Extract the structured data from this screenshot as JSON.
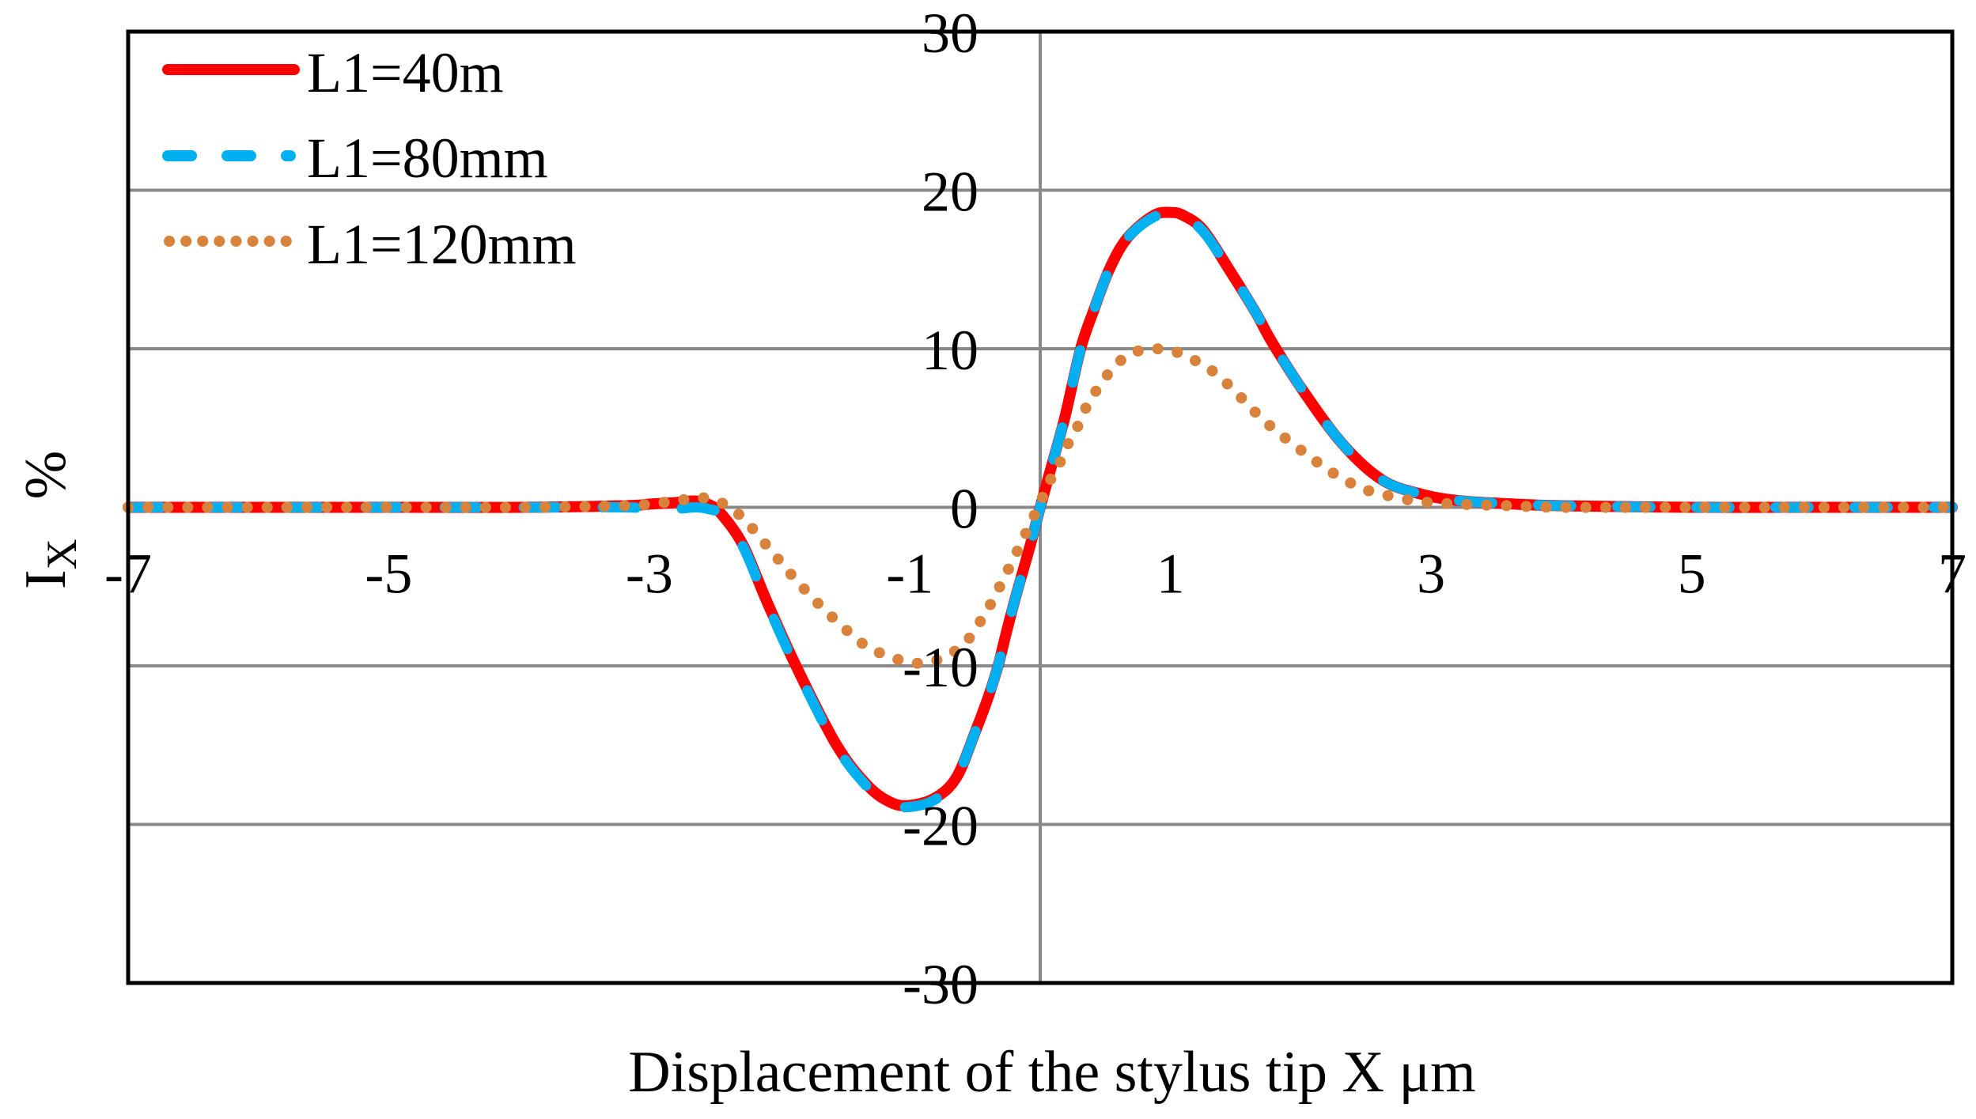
{
  "chart_data": {
    "type": "line",
    "title": "",
    "xlabel": "Displacement of the stylus tip X μm",
    "ylabel": {
      "main": "I",
      "subscript": "X",
      "unit": "%"
    },
    "xlim": [
      -7,
      7
    ],
    "ylim": [
      -30,
      30
    ],
    "x_ticks": [
      -7,
      -5,
      -3,
      -1,
      1,
      3,
      5,
      7
    ],
    "x_tick_labels": [
      "-7",
      "-5",
      "-3",
      "-1",
      "1",
      "3",
      "5",
      "7"
    ],
    "y_ticks": [
      -30,
      -20,
      -10,
      0,
      10,
      20,
      30
    ],
    "y_tick_labels": [
      "-30",
      "-20",
      "-10",
      "0",
      "10",
      "20",
      "30"
    ],
    "grid": {
      "horizontal": true,
      "vertical_at_x0": true
    },
    "legend_position": "upper-left",
    "series": [
      {
        "name": "L1=40m",
        "color": "#ff0000",
        "style": "solid",
        "x": [
          -7,
          -5,
          -4,
          -3.2,
          -3,
          -2.8,
          -2.65,
          -2.55,
          -2.45,
          -2.28,
          -2.1,
          -1.88,
          -1.57,
          -1.33,
          -1.15,
          -1.0,
          -0.8,
          -0.64,
          -0.5,
          -0.4,
          -0.32,
          -0.26,
          -0.18,
          -0.08,
          0,
          0.08,
          0.19,
          0.31,
          0.41,
          0.53,
          0.67,
          0.87,
          1.0,
          1.1,
          1.25,
          1.45,
          1.66,
          1.78,
          2.03,
          2.33,
          2.63,
          2.94,
          3.24,
          3.65,
          4,
          5,
          6,
          7
        ],
        "y": [
          0,
          0,
          0,
          0.1,
          0.2,
          0.3,
          0.4,
          0.2,
          -0.4,
          -2.4,
          -5.9,
          -9.9,
          -14.9,
          -17.5,
          -18.6,
          -18.8,
          -18.3,
          -17.0,
          -14.2,
          -12.0,
          -9.9,
          -7.9,
          -5.4,
          -2.5,
          0,
          2.4,
          5.7,
          10.0,
          12.4,
          15.0,
          17.0,
          18.4,
          18.6,
          18.4,
          17.5,
          15.0,
          12.2,
          10.4,
          7.2,
          3.9,
          1.7,
          0.8,
          0.4,
          0.2,
          0.1,
          0,
          0,
          0
        ]
      },
      {
        "name": "L1=80mm",
        "color": "#00b0f0",
        "style": "dashed",
        "x": [
          -7,
          -5,
          -4,
          -3.2,
          -3,
          -2.8,
          -2.65,
          -2.55,
          -2.45,
          -2.28,
          -2.1,
          -1.88,
          -1.57,
          -1.33,
          -1.15,
          -1.0,
          -0.8,
          -0.64,
          -0.5,
          -0.4,
          -0.32,
          -0.26,
          -0.18,
          -0.08,
          0,
          0.08,
          0.19,
          0.31,
          0.41,
          0.53,
          0.67,
          0.87,
          1.0,
          1.1,
          1.25,
          1.45,
          1.66,
          1.78,
          2.03,
          2.33,
          2.63,
          2.94,
          3.24,
          3.65,
          4,
          5,
          6,
          7
        ],
        "y": [
          0,
          0,
          0,
          0,
          -0.1,
          -0.1,
          0,
          -0.1,
          -0.5,
          -2.5,
          -6.0,
          -10.0,
          -15.0,
          -17.6,
          -18.7,
          -18.9,
          -18.4,
          -17.0,
          -14.2,
          -12.0,
          -9.9,
          -7.9,
          -5.4,
          -2.5,
          0,
          2.4,
          5.7,
          10.0,
          12.4,
          15.0,
          17.0,
          18.3,
          18.4,
          18.3,
          17.4,
          15.0,
          12.2,
          10.4,
          7.2,
          3.9,
          1.7,
          0.8,
          0.4,
          0.2,
          0.1,
          0,
          0,
          0
        ]
      },
      {
        "name": "L1=120mm",
        "color": "#d9823b",
        "style": "dotted",
        "x": [
          -7,
          -5,
          -4,
          -3.2,
          -3,
          -2.8,
          -2.6,
          -2.45,
          -2.28,
          -2.06,
          -1.84,
          -1.6,
          -1.33,
          -1.18,
          -1.03,
          -0.87,
          -0.7,
          -0.56,
          -0.46,
          -0.38,
          -0.25,
          -0.12,
          0,
          0.07,
          0.15,
          0.22,
          0.3,
          0.37,
          0.46,
          0.57,
          0.7,
          0.86,
          1.04,
          1.19,
          1.33,
          1.46,
          1.58,
          1.7,
          1.83,
          1.97,
          2.1,
          2.24,
          2.39,
          2.54,
          2.88,
          3.22,
          3.6,
          4,
          5,
          6,
          7
        ],
        "y": [
          0,
          0,
          0,
          0.1,
          0.2,
          0.4,
          0.6,
          0.3,
          -0.7,
          -2.8,
          -4.9,
          -6.9,
          -8.8,
          -9.3,
          -9.75,
          -9.8,
          -9.3,
          -8.4,
          -7.2,
          -6.1,
          -4.0,
          -1.8,
          0.3,
          1.6,
          2.8,
          4.1,
          5.3,
          6.6,
          7.7,
          8.9,
          9.7,
          10.0,
          9.8,
          9.25,
          8.55,
          7.6,
          6.6,
          5.6,
          4.7,
          3.8,
          3.0,
          2.2,
          1.5,
          1.0,
          0.4,
          0.2,
          0.1,
          0,
          0,
          0,
          0
        ]
      }
    ]
  },
  "legend": {
    "items": [
      {
        "label": "L1=40m"
      },
      {
        "label": "L1=80mm"
      },
      {
        "label": "L1=120mm"
      }
    ]
  },
  "axes": {
    "x_title": "Displacement of the stylus tip X μm",
    "y_title_main": "I",
    "y_title_sub": "X",
    "y_title_unit": "%"
  }
}
